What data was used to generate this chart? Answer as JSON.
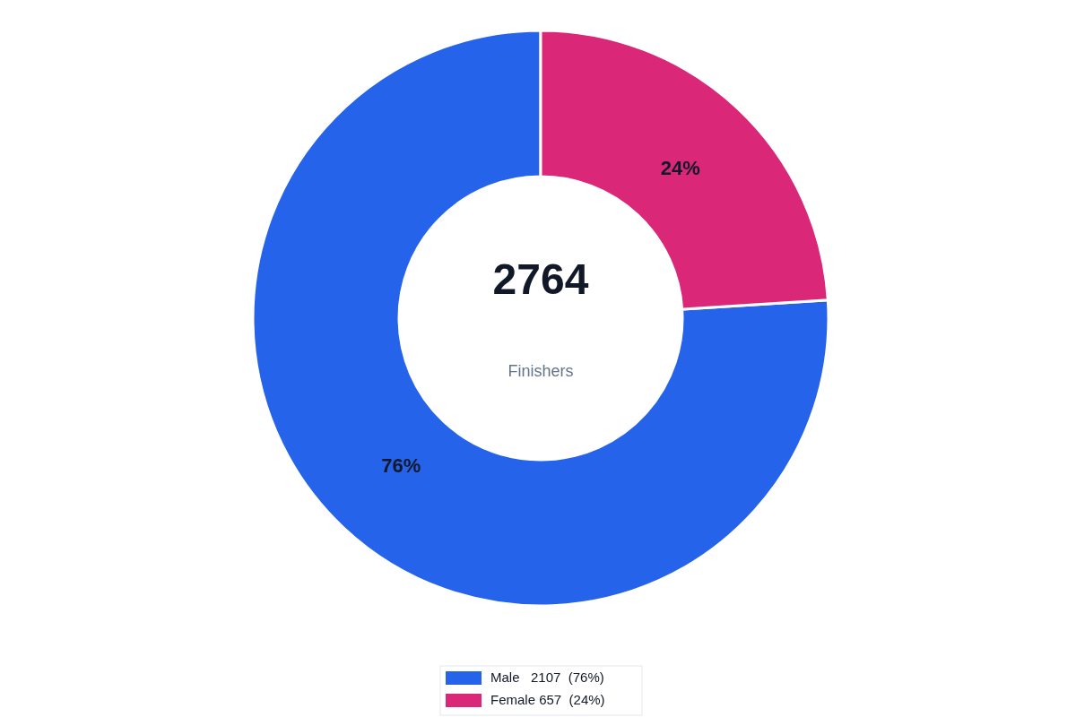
{
  "chart_data": {
    "type": "donut",
    "categories": [
      "Male   2107  (76%)",
      "Female 657  (24%)"
    ],
    "values": [
      76,
      24
    ],
    "colors": [
      "#2563eb",
      "#db2777"
    ],
    "value_labels": [
      "76%",
      "24%"
    ],
    "annotations": [
      "2764",
      "Finishers"
    ],
    "legend": "bottom"
  }
}
